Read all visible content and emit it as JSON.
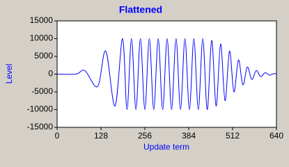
{
  "chart_data": {
    "type": "line",
    "title": "Flattened",
    "x_label": "Update term",
    "y_label": "Level",
    "x": [
      0,
      55,
      81,
      118,
      142,
      169,
      191,
      204,
      217,
      230,
      243,
      256,
      269,
      282,
      295,
      308,
      321,
      334,
      347,
      360,
      373,
      386,
      399,
      412,
      425,
      438,
      451,
      464,
      477,
      490,
      503,
      516,
      529,
      542,
      555,
      568,
      581,
      594,
      607,
      620,
      633,
      640
    ],
    "series": [
      {
        "name": "Level",
        "color": "#0000ff",
        "values": [
          0,
          0,
          1000,
          -3500,
          6500,
          -9000,
          10000,
          -10000,
          10000,
          -10000,
          10000,
          -10000,
          10000,
          -10000,
          10000,
          -10000,
          10000,
          -10000,
          10000,
          -10000,
          10000,
          -10000,
          10000,
          -10000,
          10000,
          -10000,
          9500,
          -9000,
          8500,
          -7500,
          6500,
          -5000,
          4000,
          -3000,
          2000,
          -1500,
          1000,
          -700,
          400,
          -300,
          150,
          0
        ]
      }
    ],
    "xlim": [
      0,
      640
    ],
    "xticks": [
      0,
      128,
      256,
      384,
      512,
      640
    ],
    "ylim": [
      -15000,
      15000
    ],
    "yticks": [
      -15000,
      -10000,
      -5000,
      0,
      5000,
      10000,
      15000
    ],
    "grid": false
  }
}
